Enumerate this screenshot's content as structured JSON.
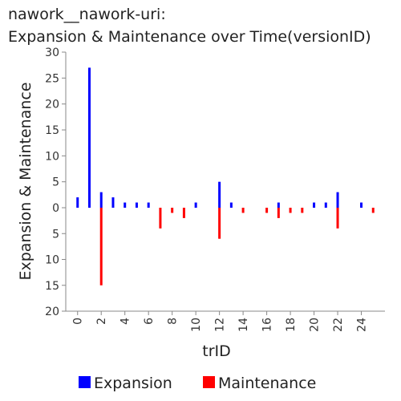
{
  "chart_data": {
    "type": "bar",
    "title_line1": "nawork__nawork-uri:",
    "title_line2": "Expansion & Maintenance over Time(versionID)",
    "xlabel": "trID",
    "ylabel": "Expansion & Maintenance",
    "xlim": [
      -1,
      26
    ],
    "ylim_top": [
      0,
      30
    ],
    "ylim_bottom": [
      0,
      20
    ],
    "x_ticks": [
      0,
      2,
      4,
      6,
      8,
      10,
      12,
      14,
      16,
      18,
      20,
      22,
      24
    ],
    "y_ticks_top": [
      30,
      25,
      20,
      15,
      10,
      5,
      0
    ],
    "y_ticks_bottom": [
      5,
      10,
      15,
      20
    ],
    "grid": false,
    "legend_position": "bottom",
    "series": [
      {
        "name": "Expansion",
        "color": "#0000ff",
        "points": [
          {
            "x": 0,
            "y": 2
          },
          {
            "x": 1,
            "y": 27
          },
          {
            "x": 2,
            "y": 3
          },
          {
            "x": 3,
            "y": 2
          },
          {
            "x": 4,
            "y": 1
          },
          {
            "x": 5,
            "y": 1
          },
          {
            "x": 6,
            "y": 1
          },
          {
            "x": 10,
            "y": 1
          },
          {
            "x": 12,
            "y": 5
          },
          {
            "x": 13,
            "y": 1
          },
          {
            "x": 17,
            "y": 1
          },
          {
            "x": 20,
            "y": 1
          },
          {
            "x": 21,
            "y": 1
          },
          {
            "x": 22,
            "y": 3
          },
          {
            "x": 24,
            "y": 1
          }
        ]
      },
      {
        "name": "Maintenance",
        "color": "#ff0000",
        "points": [
          {
            "x": 2,
            "y": 15
          },
          {
            "x": 7,
            "y": 4
          },
          {
            "x": 8,
            "y": 1
          },
          {
            "x": 9,
            "y": 2
          },
          {
            "x": 12,
            "y": 6
          },
          {
            "x": 14,
            "y": 1
          },
          {
            "x": 16,
            "y": 1
          },
          {
            "x": 17,
            "y": 2
          },
          {
            "x": 18,
            "y": 1
          },
          {
            "x": 19,
            "y": 1
          },
          {
            "x": 22,
            "y": 4
          },
          {
            "x": 25,
            "y": 1
          }
        ]
      }
    ]
  }
}
